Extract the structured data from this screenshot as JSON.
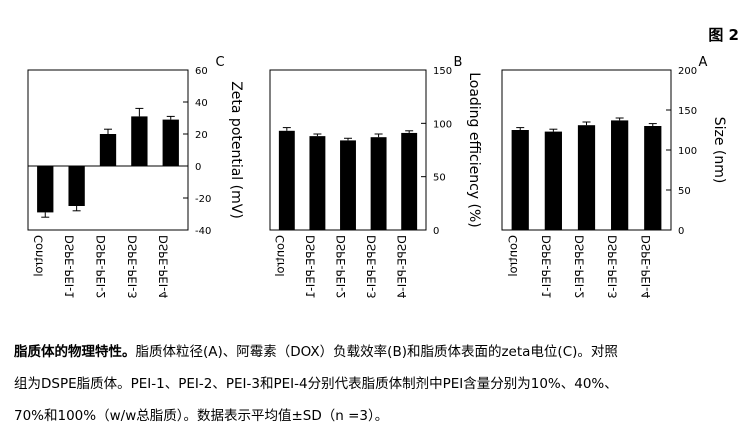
{
  "figure_label": "图 2",
  "chart_data": [
    {
      "type": "bar",
      "panel": "A",
      "ylabel": "Size (nm)",
      "ylim": [
        0,
        200
      ],
      "yticks": [
        0,
        50,
        100,
        150,
        200
      ],
      "categories": [
        "DSPE-PEI-4",
        "DSPE-PEI-3",
        "DSPE-PEI-2",
        "DSPE-PEI-1",
        "Control"
      ],
      "values": [
        130,
        137,
        131,
        123,
        125
      ],
      "errors": [
        3,
        3,
        4,
        3,
        3
      ],
      "grid": false
    },
    {
      "type": "bar",
      "panel": "B",
      "ylabel": "Loading efficiency (%)",
      "ylim": [
        0,
        150
      ],
      "yticks": [
        0,
        50,
        100,
        150
      ],
      "categories": [
        "DSPE-PEI-4",
        "DSPE-PEI-3",
        "DSPE-PEI-2",
        "DSPE-PEI-1",
        "Control"
      ],
      "values": [
        91,
        87,
        84,
        88,
        93
      ],
      "errors": [
        2,
        3,
        2,
        2,
        3
      ],
      "grid": false
    },
    {
      "type": "bar",
      "panel": "C",
      "ylabel": "Zeta potential (mV)",
      "ylim": [
        -40,
        60
      ],
      "yticks": [
        -40,
        -20,
        0,
        20,
        40,
        60
      ],
      "categories": [
        "DSPE-PEI-4",
        "DSPE-PEI-3",
        "DSPE-PEI-2",
        "DSPE-PEI-1",
        "Control"
      ],
      "values": [
        29,
        31,
        20,
        -25,
        -29
      ],
      "errors": [
        2,
        5,
        3,
        3,
        3
      ],
      "grid": false
    }
  ],
  "caption": {
    "title": "脂质体的物理特性。",
    "line1": "脂质体粒径(A)、阿霉素（DOX）负载效率(B)和脂质体表面的zeta电位(C)。对照",
    "line2": "组为DSPE脂质体。PEI-1、PEI-2、PEI-3和PEI-4分别代表脂质体制剂中PEI含量分别为10%、40%、",
    "line3": "70%和100%（w/w总脂质）。数据表示平均值±SD（n =3）。"
  }
}
